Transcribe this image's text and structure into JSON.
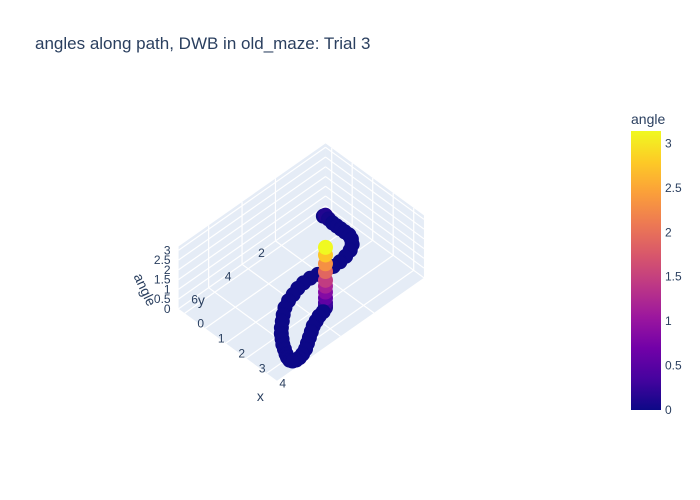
{
  "title": "angles along path, DWB in old_maze: Trial 3",
  "chart_data": {
    "type": "scatter3d",
    "title": "angles along path, DWB in old_maze: Trial 3",
    "xlabel": "x",
    "ylabel": "y",
    "zlabel": "angle",
    "x_ticks": [
      "0",
      "1",
      "2",
      "3",
      "4"
    ],
    "y_ticks": [
      "2",
      "4",
      "6"
    ],
    "z_ticks": [
      "0",
      "0.5",
      "1",
      "1.5",
      "2",
      "2.5",
      "3"
    ],
    "colorbar": {
      "title": "angle",
      "range": [
        0,
        3.14
      ],
      "ticks": [
        "0",
        "0.5",
        "1",
        "1.5",
        "2",
        "2.5",
        "3"
      ],
      "colorscale": [
        "#0d0887",
        "#46039f",
        "#7201a8",
        "#9c179e",
        "#bd3786",
        "#d8576b",
        "#ed7953",
        "#fb9f3a",
        "#fdca26",
        "#f0f921"
      ]
    },
    "series": [
      {
        "mode": "markers",
        "x": [
          0.0,
          0.1,
          0.25,
          0.45,
          0.65,
          0.85,
          1.05,
          1.25,
          1.45,
          1.65,
          1.8,
          1.9,
          1.95,
          1.95,
          1.9,
          1.85,
          1.8,
          1.8,
          1.85,
          1.95,
          2.05,
          2.2,
          2.4,
          2.6,
          2.8,
          3.0,
          3.2,
          3.4,
          3.6,
          3.8,
          3.95,
          4.1,
          4.2,
          4.25,
          4.25,
          4.2,
          4.1,
          3.95,
          3.8,
          3.65,
          3.5,
          3.4,
          3.3,
          3.25,
          3.2,
          3.2,
          3.2,
          3.2,
          3.2,
          3.2,
          3.2,
          3.2,
          3.2,
          3.2,
          3.2
        ],
        "y": [
          -0.5,
          -0.5,
          -0.5,
          -0.5,
          -0.5,
          -0.5,
          -0.5,
          -0.5,
          -0.4,
          -0.2,
          0.1,
          0.5,
          0.9,
          1.3,
          1.7,
          2.1,
          2.5,
          2.9,
          3.3,
          3.7,
          4.1,
          4.5,
          4.85,
          5.15,
          5.45,
          5.7,
          5.9,
          6.1,
          6.25,
          6.4,
          6.5,
          6.55,
          6.5,
          6.35,
          6.15,
          5.9,
          5.6,
          5.3,
          5.0,
          4.7,
          4.4,
          4.1,
          3.8,
          3.5,
          3.3,
          3.3,
          3.3,
          3.3,
          3.3,
          3.3,
          3.3,
          3.3,
          3.3,
          3.3,
          3.3
        ],
        "z": [
          0,
          0.12,
          0.05,
          0,
          0,
          0,
          0,
          0,
          0,
          0,
          0,
          0,
          0,
          0,
          0,
          0,
          0,
          0,
          0,
          0,
          0,
          0,
          0,
          0,
          0,
          0,
          0,
          0,
          0,
          0,
          0,
          0,
          0,
          0,
          0,
          0,
          0,
          0,
          0,
          0,
          0,
          0,
          0,
          0,
          0.05,
          0.15,
          0.3,
          0.55,
          0.85,
          1.15,
          1.45,
          1.9,
          2.3,
          2.75,
          3.14
        ]
      }
    ]
  }
}
